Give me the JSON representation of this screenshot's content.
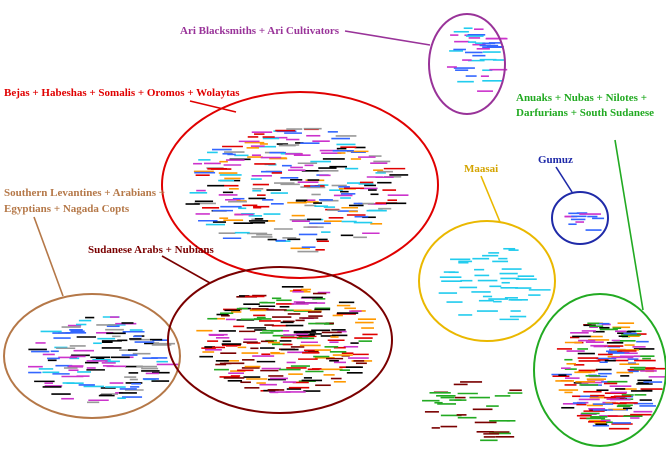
{
  "groups": [
    {
      "label": "Ari Blacksmiths + Ari Cultivators"
    },
    {
      "label": "Bejas + Habeshas + Somalis + Oromos + Wolaytas"
    },
    {
      "label_lines": [
        "Anuaks + Nubas + Nilotes +",
        "Darfurians + South Sudanese"
      ]
    },
    {
      "label": "Maasai"
    },
    {
      "label": "Gumuz"
    },
    {
      "label_lines": [
        "Southern Levantines + Arabians +",
        "Egyptians + Nagada Copts"
      ]
    },
    {
      "label": "Sudanese Arabs + Nubians"
    }
  ]
}
